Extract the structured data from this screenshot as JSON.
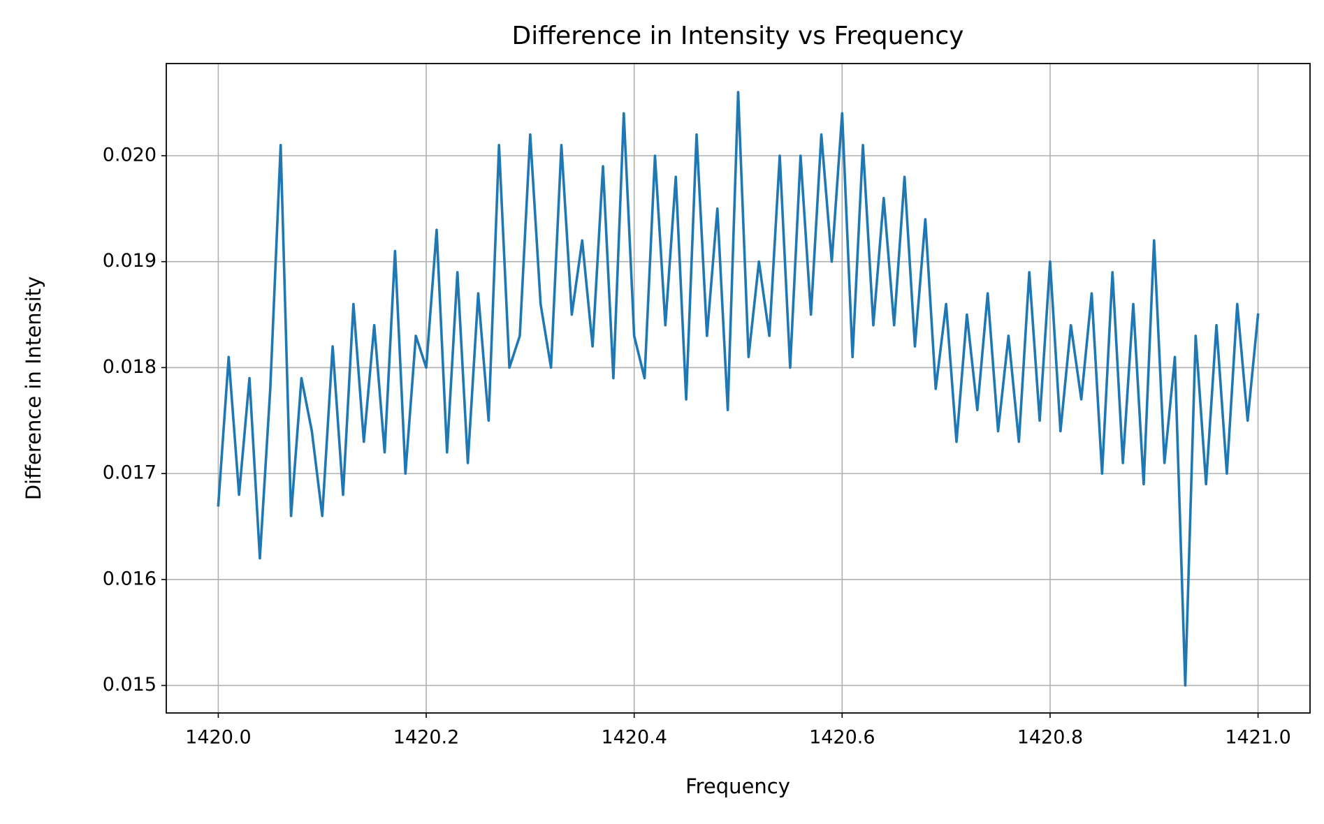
{
  "chart_data": {
    "type": "line",
    "title": "Difference in Intensity vs Frequency",
    "xlabel": "Frequency",
    "ylabel": "Difference in Intensity",
    "color": "#1f77b4",
    "grid": true,
    "xlim": [
      1419.95,
      1421.05
    ],
    "ylim": [
      0.01474,
      0.02087
    ],
    "xticks": [
      {
        "value": 1420,
        "label": "1420.0"
      },
      1420.2,
      1420.4,
      1420.6,
      1420.8,
      {
        "value": 1421,
        "label": "1421.0"
      }
    ],
    "yticks": [
      0.015,
      0.016,
      0.017,
      0.018,
      0.019,
      {
        "value": 0.02,
        "label": "0.020"
      }
    ],
    "x": [
      1420,
      1420.01,
      1420.02,
      1420.03,
      1420.04,
      1420.05,
      1420.06,
      1420.07,
      1420.08,
      1420.09,
      1420.1,
      1420.11,
      1420.12,
      1420.13,
      1420.14,
      1420.15,
      1420.16,
      1420.17,
      1420.18,
      1420.19,
      1420.2,
      1420.21,
      1420.22,
      1420.23,
      1420.24,
      1420.25,
      1420.26,
      1420.27,
      1420.28,
      1420.29,
      1420.3,
      1420.31,
      1420.32,
      1420.33,
      1420.34,
      1420.35,
      1420.36,
      1420.37,
      1420.38,
      1420.39,
      1420.4,
      1420.41,
      1420.42,
      1420.43,
      1420.44,
      1420.45,
      1420.46,
      1420.47,
      1420.48,
      1420.49,
      1420.5,
      1420.51,
      1420.52,
      1420.53,
      1420.54,
      1420.55,
      1420.56,
      1420.57,
      1420.58,
      1420.59,
      1420.6,
      1420.61,
      1420.62,
      1420.63,
      1420.64,
      1420.65,
      1420.66,
      1420.67,
      1420.68,
      1420.69,
      1420.7,
      1420.71,
      1420.72,
      1420.73,
      1420.74,
      1420.75,
      1420.76,
      1420.77,
      1420.78,
      1420.79,
      1420.8,
      1420.81,
      1420.82,
      1420.83,
      1420.84,
      1420.85,
      1420.86,
      1420.87,
      1420.88,
      1420.89,
      1420.9,
      1420.91,
      1420.92,
      1420.93,
      1420.94,
      1420.95,
      1420.96,
      1420.97,
      1420.98,
      1420.99,
      1421
    ],
    "values": [
      0.0167,
      0.0181,
      0.0168,
      0.0179,
      0.0162,
      0.0178,
      0.0201,
      0.0166,
      0.0179,
      0.0174,
      0.0166,
      0.0182,
      0.0168,
      0.0186,
      0.0173,
      0.0184,
      0.0172,
      0.0191,
      0.017,
      0.0183,
      0.018,
      0.0193,
      0.0172,
      0.0189,
      0.0171,
      0.0187,
      0.0175,
      0.0201,
      0.018,
      0.0183,
      0.0202,
      0.0186,
      0.018,
      0.0201,
      0.0185,
      0.0192,
      0.0182,
      0.0199,
      0.0179,
      0.0204,
      0.0183,
      0.0179,
      0.02,
      0.0184,
      0.0198,
      0.0177,
      0.0202,
      0.0183,
      0.0195,
      0.0176,
      0.0206,
      0.0181,
      0.019,
      0.0183,
      0.02,
      0.018,
      0.02,
      0.0185,
      0.0202,
      0.019,
      0.0204,
      0.0181,
      0.0201,
      0.0184,
      0.0196,
      0.0184,
      0.0198,
      0.0182,
      0.0194,
      0.0178,
      0.0186,
      0.0173,
      0.0185,
      0.0176,
      0.0187,
      0.0174,
      0.0183,
      0.0173,
      0.0189,
      0.0175,
      0.019,
      0.0174,
      0.0184,
      0.0177,
      0.0187,
      0.017,
      0.0189,
      0.0171,
      0.0186,
      0.0169,
      0.0192,
      0.0171,
      0.0181,
      0.015,
      0.0183,
      0.0169,
      0.0184,
      0.017,
      0.0186,
      0.0175,
      0.0185
    ]
  }
}
